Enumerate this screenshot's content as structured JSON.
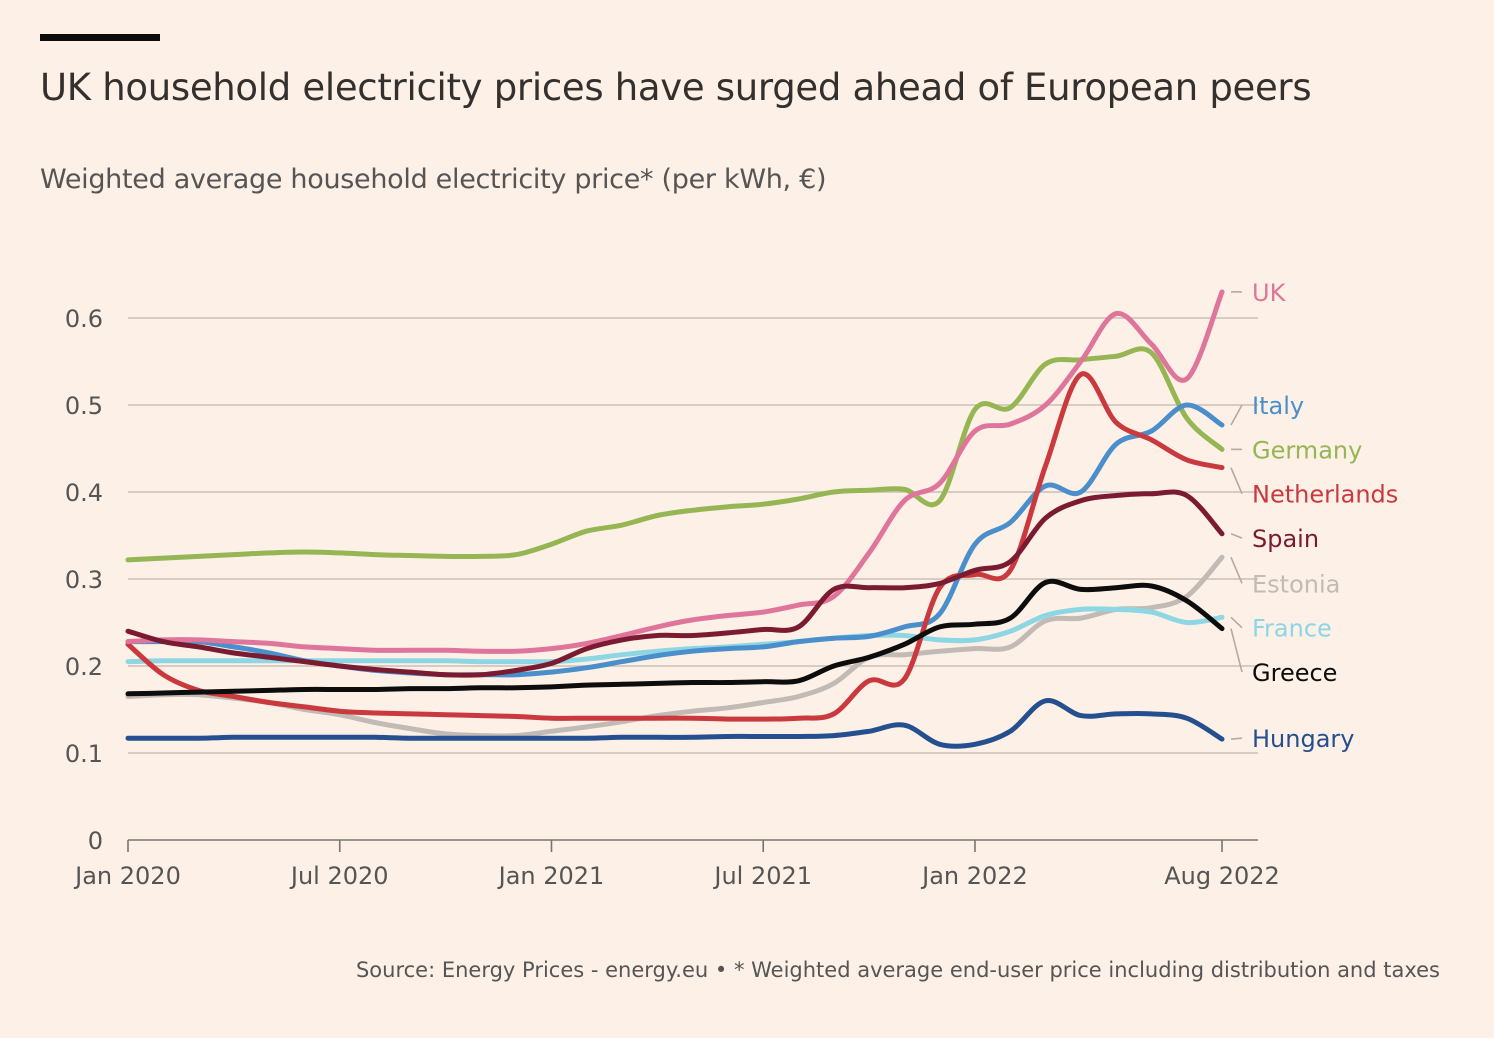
{
  "header": {
    "title": "UK household electricity prices have surged ahead of European peers",
    "subtitle": "Weighted average household electricity price* (per kWh, €)"
  },
  "footer": {
    "source": "Source: Energy Prices - energy.eu • * Weighted average end-user price including distribution and taxes"
  },
  "chart_data": {
    "type": "line",
    "title": "UK household electricity prices have surged ahead of European peers",
    "ylabel": "Weighted average household electricity price* (per kWh, €)",
    "xlabel": "",
    "ylim": [
      0,
      0.6
    ],
    "yticks": [
      0,
      0.1,
      0.2,
      0.3,
      0.4,
      0.5,
      0.6
    ],
    "ytick_labels": [
      "0",
      "0.1",
      "0.2",
      "0.3",
      "0.4",
      "0.5",
      "0.6"
    ],
    "xticks": [
      {
        "t": 0,
        "label": "Jan 2020"
      },
      {
        "t": 6,
        "label": "Jul 2020"
      },
      {
        "t": 12,
        "label": "Jan 2021"
      },
      {
        "t": 18,
        "label": "Jul 2021"
      },
      {
        "t": 24,
        "label": "Jan 2022"
      },
      {
        "t": 31,
        "label": "Aug 2022"
      }
    ],
    "grid": true,
    "legend": "direct labels at right",
    "series": [
      {
        "name": "UK",
        "color": "#e0759b",
        "label_value": 0.63,
        "points": [
          [
            0,
            0.228
          ],
          [
            1,
            0.23
          ],
          [
            2,
            0.23
          ],
          [
            3,
            0.228
          ],
          [
            4,
            0.226
          ],
          [
            5,
            0.222
          ],
          [
            6,
            0.22
          ],
          [
            7,
            0.218
          ],
          [
            8,
            0.218
          ],
          [
            9,
            0.218
          ],
          [
            10,
            0.217
          ],
          [
            11,
            0.217
          ],
          [
            12,
            0.22
          ],
          [
            13,
            0.226
          ],
          [
            14,
            0.235
          ],
          [
            15,
            0.245
          ],
          [
            16,
            0.253
          ],
          [
            17,
            0.258
          ],
          [
            18,
            0.262
          ],
          [
            19,
            0.27
          ],
          [
            20,
            0.28
          ],
          [
            21,
            0.33
          ],
          [
            22,
            0.39
          ],
          [
            23,
            0.41
          ],
          [
            24,
            0.47
          ],
          [
            25,
            0.478
          ],
          [
            26,
            0.5
          ],
          [
            27,
            0.55
          ],
          [
            28,
            0.605
          ],
          [
            29,
            0.57
          ],
          [
            30,
            0.53
          ],
          [
            31,
            0.63
          ]
        ]
      },
      {
        "name": "Italy",
        "color": "#4a8fcb",
        "label_value": 0.5,
        "points": [
          [
            0,
            0.228
          ],
          [
            1,
            0.228
          ],
          [
            2,
            0.228
          ],
          [
            3,
            0.222
          ],
          [
            4,
            0.215
          ],
          [
            5,
            0.206
          ],
          [
            6,
            0.2
          ],
          [
            7,
            0.195
          ],
          [
            8,
            0.192
          ],
          [
            9,
            0.19
          ],
          [
            10,
            0.19
          ],
          [
            11,
            0.19
          ],
          [
            12,
            0.193
          ],
          [
            13,
            0.198
          ],
          [
            14,
            0.205
          ],
          [
            15,
            0.212
          ],
          [
            16,
            0.217
          ],
          [
            17,
            0.22
          ],
          [
            18,
            0.222
          ],
          [
            19,
            0.228
          ],
          [
            20,
            0.232
          ],
          [
            21,
            0.234
          ],
          [
            22,
            0.245
          ],
          [
            23,
            0.26
          ],
          [
            24,
            0.34
          ],
          [
            25,
            0.365
          ],
          [
            26,
            0.407
          ],
          [
            27,
            0.4
          ],
          [
            28,
            0.455
          ],
          [
            29,
            0.47
          ],
          [
            30,
            0.5
          ],
          [
            31,
            0.477
          ]
        ]
      },
      {
        "name": "Germany",
        "color": "#96b553",
        "label_value": 0.449,
        "points": [
          [
            0,
            0.322
          ],
          [
            1,
            0.324
          ],
          [
            2,
            0.326
          ],
          [
            3,
            0.328
          ],
          [
            4,
            0.33
          ],
          [
            5,
            0.331
          ],
          [
            6,
            0.33
          ],
          [
            7,
            0.328
          ],
          [
            8,
            0.327
          ],
          [
            9,
            0.326
          ],
          [
            10,
            0.326
          ],
          [
            11,
            0.328
          ],
          [
            12,
            0.34
          ],
          [
            13,
            0.355
          ],
          [
            14,
            0.362
          ],
          [
            15,
            0.373
          ],
          [
            16,
            0.379
          ],
          [
            17,
            0.383
          ],
          [
            18,
            0.386
          ],
          [
            19,
            0.392
          ],
          [
            20,
            0.4
          ],
          [
            21,
            0.402
          ],
          [
            22,
            0.403
          ],
          [
            23,
            0.39
          ],
          [
            24,
            0.495
          ],
          [
            25,
            0.497
          ],
          [
            26,
            0.547
          ],
          [
            27,
            0.552
          ],
          [
            28,
            0.556
          ],
          [
            29,
            0.56
          ],
          [
            30,
            0.485
          ],
          [
            31,
            0.449
          ]
        ]
      },
      {
        "name": "Netherlands",
        "color": "#c9393e",
        "label_value": 0.398,
        "points": [
          [
            0,
            0.225
          ],
          [
            1,
            0.19
          ],
          [
            2,
            0.172
          ],
          [
            3,
            0.165
          ],
          [
            4,
            0.158
          ],
          [
            5,
            0.153
          ],
          [
            6,
            0.148
          ],
          [
            7,
            0.146
          ],
          [
            8,
            0.145
          ],
          [
            9,
            0.144
          ],
          [
            10,
            0.143
          ],
          [
            11,
            0.142
          ],
          [
            12,
            0.14
          ],
          [
            13,
            0.14
          ],
          [
            14,
            0.14
          ],
          [
            15,
            0.14
          ],
          [
            16,
            0.14
          ],
          [
            17,
            0.139
          ],
          [
            18,
            0.139
          ],
          [
            19,
            0.14
          ],
          [
            20,
            0.145
          ],
          [
            21,
            0.183
          ],
          [
            22,
            0.185
          ],
          [
            23,
            0.29
          ],
          [
            24,
            0.305
          ],
          [
            25,
            0.31
          ],
          [
            26,
            0.43
          ],
          [
            27,
            0.535
          ],
          [
            28,
            0.48
          ],
          [
            29,
            0.46
          ],
          [
            30,
            0.437
          ],
          [
            31,
            0.428
          ]
        ]
      },
      {
        "name": "Spain",
        "color": "#7a1b31",
        "label_value": 0.347,
        "points": [
          [
            0,
            0.24
          ],
          [
            1,
            0.228
          ],
          [
            2,
            0.222
          ],
          [
            3,
            0.215
          ],
          [
            4,
            0.21
          ],
          [
            5,
            0.205
          ],
          [
            6,
            0.2
          ],
          [
            7,
            0.196
          ],
          [
            8,
            0.193
          ],
          [
            9,
            0.19
          ],
          [
            10,
            0.19
          ],
          [
            11,
            0.195
          ],
          [
            12,
            0.203
          ],
          [
            13,
            0.22
          ],
          [
            14,
            0.23
          ],
          [
            15,
            0.235
          ],
          [
            16,
            0.235
          ],
          [
            17,
            0.238
          ],
          [
            18,
            0.242
          ],
          [
            19,
            0.245
          ],
          [
            20,
            0.288
          ],
          [
            21,
            0.29
          ],
          [
            22,
            0.29
          ],
          [
            23,
            0.295
          ],
          [
            24,
            0.31
          ],
          [
            25,
            0.32
          ],
          [
            26,
            0.37
          ],
          [
            27,
            0.39
          ],
          [
            28,
            0.396
          ],
          [
            29,
            0.398
          ],
          [
            30,
            0.396
          ],
          [
            31,
            0.352
          ]
        ]
      },
      {
        "name": "Estonia",
        "color": "#c2bab4",
        "label_value": 0.295,
        "points": [
          [
            0,
            0.165
          ],
          [
            1,
            0.167
          ],
          [
            2,
            0.167
          ],
          [
            3,
            0.163
          ],
          [
            4,
            0.158
          ],
          [
            5,
            0.15
          ],
          [
            6,
            0.144
          ],
          [
            7,
            0.135
          ],
          [
            8,
            0.128
          ],
          [
            9,
            0.122
          ],
          [
            10,
            0.12
          ],
          [
            11,
            0.12
          ],
          [
            12,
            0.125
          ],
          [
            13,
            0.13
          ],
          [
            14,
            0.136
          ],
          [
            15,
            0.143
          ],
          [
            16,
            0.148
          ],
          [
            17,
            0.152
          ],
          [
            18,
            0.158
          ],
          [
            19,
            0.165
          ],
          [
            20,
            0.18
          ],
          [
            21,
            0.21
          ],
          [
            22,
            0.213
          ],
          [
            23,
            0.217
          ],
          [
            24,
            0.22
          ],
          [
            25,
            0.222
          ],
          [
            26,
            0.252
          ],
          [
            27,
            0.255
          ],
          [
            28,
            0.265
          ],
          [
            29,
            0.267
          ],
          [
            30,
            0.28
          ],
          [
            31,
            0.325
          ]
        ]
      },
      {
        "name": "France",
        "color": "#8dd6e4",
        "label_value": 0.244,
        "points": [
          [
            0,
            0.205
          ],
          [
            1,
            0.206
          ],
          [
            2,
            0.206
          ],
          [
            3,
            0.206
          ],
          [
            4,
            0.206
          ],
          [
            5,
            0.206
          ],
          [
            6,
            0.206
          ],
          [
            7,
            0.206
          ],
          [
            8,
            0.206
          ],
          [
            9,
            0.206
          ],
          [
            10,
            0.205
          ],
          [
            11,
            0.205
          ],
          [
            12,
            0.205
          ],
          [
            13,
            0.208
          ],
          [
            14,
            0.213
          ],
          [
            15,
            0.217
          ],
          [
            16,
            0.22
          ],
          [
            17,
            0.222
          ],
          [
            18,
            0.225
          ],
          [
            19,
            0.228
          ],
          [
            20,
            0.232
          ],
          [
            21,
            0.235
          ],
          [
            22,
            0.235
          ],
          [
            23,
            0.23
          ],
          [
            24,
            0.23
          ],
          [
            25,
            0.24
          ],
          [
            26,
            0.258
          ],
          [
            27,
            0.265
          ],
          [
            28,
            0.265
          ],
          [
            29,
            0.262
          ],
          [
            30,
            0.25
          ],
          [
            31,
            0.256
          ]
        ]
      },
      {
        "name": "Greece",
        "color": "#0d0d0d",
        "label_value": 0.193,
        "points": [
          [
            0,
            0.168
          ],
          [
            1,
            0.169
          ],
          [
            2,
            0.17
          ],
          [
            3,
            0.171
          ],
          [
            4,
            0.172
          ],
          [
            5,
            0.173
          ],
          [
            6,
            0.173
          ],
          [
            7,
            0.173
          ],
          [
            8,
            0.174
          ],
          [
            9,
            0.174
          ],
          [
            10,
            0.175
          ],
          [
            11,
            0.175
          ],
          [
            12,
            0.176
          ],
          [
            13,
            0.178
          ],
          [
            14,
            0.179
          ],
          [
            15,
            0.18
          ],
          [
            16,
            0.181
          ],
          [
            17,
            0.181
          ],
          [
            18,
            0.182
          ],
          [
            19,
            0.183
          ],
          [
            20,
            0.2
          ],
          [
            21,
            0.21
          ],
          [
            22,
            0.225
          ],
          [
            23,
            0.245
          ],
          [
            24,
            0.248
          ],
          [
            25,
            0.255
          ],
          [
            26,
            0.296
          ],
          [
            27,
            0.288
          ],
          [
            28,
            0.29
          ],
          [
            29,
            0.292
          ],
          [
            30,
            0.275
          ],
          [
            31,
            0.243
          ]
        ]
      },
      {
        "name": "Hungary",
        "color": "#254f8e",
        "label_value": 0.117,
        "points": [
          [
            0,
            0.117
          ],
          [
            1,
            0.117
          ],
          [
            2,
            0.117
          ],
          [
            3,
            0.118
          ],
          [
            4,
            0.118
          ],
          [
            5,
            0.118
          ],
          [
            6,
            0.118
          ],
          [
            7,
            0.118
          ],
          [
            8,
            0.117
          ],
          [
            9,
            0.117
          ],
          [
            10,
            0.117
          ],
          [
            11,
            0.117
          ],
          [
            12,
            0.117
          ],
          [
            13,
            0.117
          ],
          [
            14,
            0.118
          ],
          [
            15,
            0.118
          ],
          [
            16,
            0.118
          ],
          [
            17,
            0.119
          ],
          [
            18,
            0.119
          ],
          [
            19,
            0.119
          ],
          [
            20,
            0.12
          ],
          [
            21,
            0.125
          ],
          [
            22,
            0.132
          ],
          [
            23,
            0.11
          ],
          [
            24,
            0.11
          ],
          [
            25,
            0.125
          ],
          [
            26,
            0.16
          ],
          [
            27,
            0.143
          ],
          [
            28,
            0.145
          ],
          [
            29,
            0.145
          ],
          [
            30,
            0.14
          ],
          [
            31,
            0.116
          ]
        ]
      }
    ]
  }
}
